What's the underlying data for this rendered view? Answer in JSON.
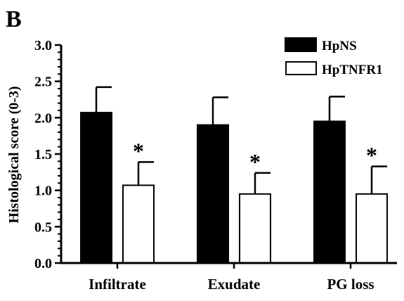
{
  "panel_label": "B",
  "chart_data": {
    "type": "bar",
    "title": "",
    "xlabel": "",
    "ylabel": "Histological score (0-3)",
    "ylim": [
      0,
      3.0
    ],
    "yticks": [
      "0.0",
      "0.5",
      "1.0",
      "1.5",
      "2.0",
      "2.5",
      "3.0"
    ],
    "categories": [
      "Infiltrate",
      "Exudate",
      "PG loss"
    ],
    "series": [
      {
        "name": "HpNS",
        "fill": "#000000",
        "values": [
          2.07,
          1.9,
          1.95
        ],
        "errors": [
          0.35,
          0.38,
          0.34
        ]
      },
      {
        "name": "HpTNFR1",
        "fill": "#ffffff",
        "values": [
          1.07,
          0.95,
          0.95
        ],
        "errors": [
          0.32,
          0.29,
          0.38
        ]
      }
    ],
    "significance": [
      "*",
      "*",
      "*"
    ],
    "legend_position": "top-right",
    "grid": false
  }
}
